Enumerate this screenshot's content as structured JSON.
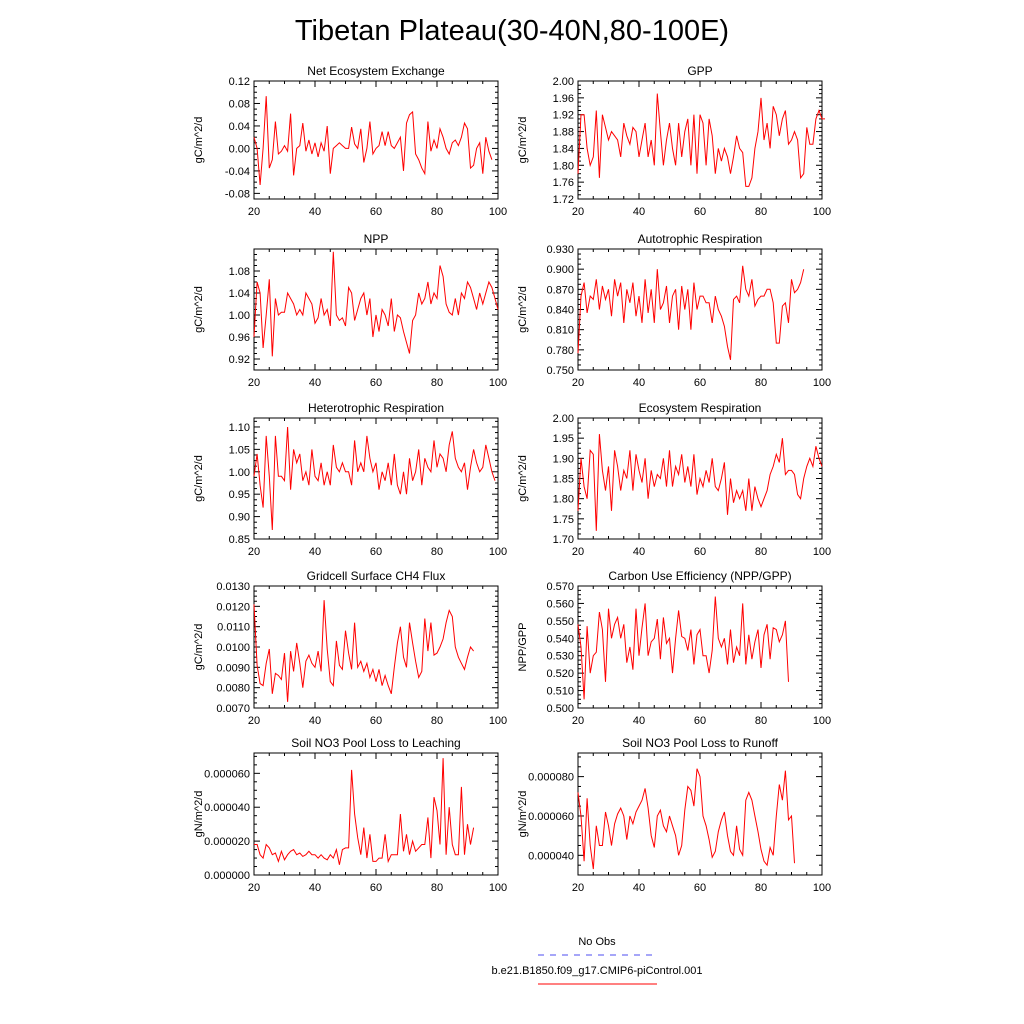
{
  "page": {
    "title": "Tibetan Plateau(30-40N,80-100E)"
  },
  "legend": {
    "items": [
      {
        "label": "No Obs",
        "color": "#4c4cf0",
        "dash": true
      },
      {
        "label": "b.e21.B1850.f09_g17.CMIP6-piControl.001",
        "color": "#ff0000",
        "dash": false
      }
    ]
  },
  "colors": {
    "series": "#ff0000",
    "axis": "#000000"
  },
  "chart_data": [
    {
      "type": "line",
      "title": "Net Ecosystem Exchange",
      "ylabel": "gC/m^2/d",
      "xlim": [
        20,
        100
      ],
      "ylim": [
        -0.09,
        0.12
      ],
      "xticks": [
        20,
        40,
        60,
        80,
        100
      ],
      "xtick_labels": [
        "20",
        "40",
        "60",
        "80",
        "100"
      ],
      "yticks": [
        -0.08,
        -0.04,
        0.0,
        0.04,
        0.08,
        0.12
      ],
      "ytick_labels": [
        "-0.08",
        "-0.04",
        "0.00",
        "0.04",
        "0.08",
        "0.12"
      ],
      "x_start": 20,
      "x_step": 1,
      "values": [
        0.02,
        0.0,
        -0.065,
        0.0,
        0.093,
        -0.035,
        -0.02,
        0.048,
        -0.01,
        -0.005,
        0.005,
        -0.005,
        0.062,
        -0.048,
        0.0,
        0.005,
        0.045,
        -0.005,
        0.015,
        -0.01,
        0.01,
        -0.015,
        0.01,
        -0.005,
        0.04,
        -0.045,
        0.0,
        0.005,
        0.01,
        0.005,
        0.0,
        0.0,
        0.038,
        0.008,
        0.0,
        0.035,
        -0.025,
        0.0,
        0.048,
        -0.01,
        0.0,
        0.005,
        0.03,
        0.005,
        0.03,
        0.005,
        0.0,
        0.01,
        0.02,
        -0.04,
        0.045,
        0.06,
        0.065,
        -0.01,
        -0.02,
        -0.035,
        -0.045,
        0.048,
        -0.005,
        0.015,
        0.0,
        0.035,
        0.02,
        0.0,
        -0.01,
        0.01,
        0.015,
        0.005,
        0.02,
        0.045,
        0.035,
        -0.035,
        -0.03,
        0.0,
        0.01,
        -0.045,
        0.02,
        -0.005,
        -0.02
      ]
    },
    {
      "type": "line",
      "title": "GPP",
      "ylabel": "gC/m^2/d",
      "xlim": [
        20,
        100
      ],
      "ylim": [
        1.72,
        2.0
      ],
      "xticks": [
        20,
        40,
        60,
        80,
        100
      ],
      "xtick_labels": [
        "20",
        "40",
        "60",
        "80",
        "100"
      ],
      "yticks": [
        1.72,
        1.76,
        1.8,
        1.84,
        1.88,
        1.92,
        1.96,
        2.0
      ],
      "ytick_labels": [
        "1.72",
        "1.76",
        "1.80",
        "1.84",
        "1.88",
        "1.92",
        "1.96",
        "2.00"
      ],
      "x_start": 20,
      "x_step": 1,
      "values": [
        1.78,
        1.92,
        1.92,
        1.84,
        1.8,
        1.82,
        1.93,
        1.77,
        1.92,
        1.89,
        1.86,
        1.88,
        1.87,
        1.86,
        1.82,
        1.9,
        1.87,
        1.85,
        1.89,
        1.88,
        1.82,
        1.86,
        1.9,
        1.82,
        1.86,
        1.8,
        1.97,
        1.88,
        1.8,
        1.86,
        1.9,
        1.84,
        1.8,
        1.9,
        1.82,
        1.88,
        1.91,
        1.8,
        1.92,
        1.78,
        1.92,
        1.9,
        1.8,
        1.91,
        1.87,
        1.78,
        1.84,
        1.81,
        1.84,
        1.82,
        1.78,
        1.82,
        1.87,
        1.84,
        1.83,
        1.75,
        1.75,
        1.77,
        1.84,
        1.88,
        1.96,
        1.86,
        1.9,
        1.84,
        1.94,
        1.92,
        1.87,
        1.91,
        1.93,
        1.85,
        1.86,
        1.88,
        1.86,
        1.77,
        1.78,
        1.89,
        1.85,
        1.85,
        1.91,
        1.93,
        1.91,
        1.91
      ]
    },
    {
      "type": "line",
      "title": "NPP",
      "ylabel": "gC/m^2/d",
      "xlim": [
        20,
        100
      ],
      "ylim": [
        0.9,
        1.12
      ],
      "xticks": [
        20,
        40,
        60,
        80,
        100
      ],
      "xtick_labels": [
        "20",
        "40",
        "60",
        "80",
        "100"
      ],
      "yticks": [
        0.92,
        0.96,
        1.0,
        1.04,
        1.08
      ],
      "ytick_labels": [
        "0.92",
        "0.96",
        "1.00",
        "1.04",
        "1.08"
      ],
      "x_start": 20,
      "x_step": 1,
      "values": [
        0.96,
        1.06,
        1.04,
        0.94,
        1.0,
        1.065,
        0.925,
        1.03,
        1.0,
        1.005,
        1.005,
        1.04,
        1.03,
        1.02,
        1.0,
        1.01,
        1.0,
        1.04,
        1.03,
        1.02,
        0.985,
        0.995,
        1.03,
        1.0,
        1.01,
        0.98,
        1.115,
        1.0,
        0.99,
        0.995,
        0.98,
        1.05,
        1.04,
        0.99,
        1.01,
        1.03,
        1.04,
        1.0,
        1.03,
        0.96,
        1.0,
        0.97,
        1.01,
        1.0,
        0.98,
        1.03,
        0.97,
        1.0,
        0.995,
        0.97,
        0.95,
        0.93,
        0.99,
        1.0,
        1.04,
        1.02,
        1.03,
        1.06,
        1.02,
        1.04,
        1.03,
        1.09,
        1.07,
        1.02,
        1.005,
        1.0,
        1.03,
        1.0,
        1.04,
        1.03,
        1.06,
        1.05,
        1.03,
        1.01,
        1.04,
        1.02,
        1.04,
        1.06,
        1.05,
        1.03,
        1.01
      ]
    },
    {
      "type": "line",
      "title": "Autotrophic Respiration",
      "ylabel": "gC/m^2/d",
      "xlim": [
        20,
        100
      ],
      "ylim": [
        0.75,
        0.93
      ],
      "xticks": [
        20,
        40,
        60,
        80,
        100
      ],
      "xtick_labels": [
        "20",
        "40",
        "60",
        "80",
        "100"
      ],
      "yticks": [
        0.75,
        0.78,
        0.81,
        0.84,
        0.87,
        0.9,
        0.93
      ],
      "ytick_labels": [
        "0.750",
        "0.780",
        "0.810",
        "0.840",
        "0.870",
        "0.900",
        "0.930"
      ],
      "x_start": 20,
      "x_step": 1,
      "values": [
        0.775,
        0.86,
        0.88,
        0.835,
        0.86,
        0.855,
        0.885,
        0.84,
        0.875,
        0.855,
        0.87,
        0.83,
        0.885,
        0.86,
        0.88,
        0.82,
        0.87,
        0.85,
        0.88,
        0.83,
        0.86,
        0.82,
        0.885,
        0.835,
        0.87,
        0.82,
        0.9,
        0.84,
        0.85,
        0.875,
        0.82,
        0.86,
        0.87,
        0.81,
        0.875,
        0.84,
        0.87,
        0.81,
        0.88,
        0.84,
        0.86,
        0.86,
        0.85,
        0.85,
        0.82,
        0.86,
        0.84,
        0.83,
        0.815,
        0.785,
        0.765,
        0.855,
        0.86,
        0.85,
        0.905,
        0.87,
        0.86,
        0.885,
        0.845,
        0.855,
        0.86,
        0.86,
        0.87,
        0.87,
        0.85,
        0.79,
        0.79,
        0.845,
        0.85,
        0.82,
        0.885,
        0.865,
        0.87,
        0.88,
        0.9
      ]
    },
    {
      "type": "line",
      "title": "Heterotrophic Respiration",
      "ylabel": "gC/m^2/d",
      "xlim": [
        20,
        100
      ],
      "ylim": [
        0.85,
        1.12
      ],
      "xticks": [
        20,
        40,
        60,
        80,
        100
      ],
      "xtick_labels": [
        "20",
        "40",
        "60",
        "80",
        "100"
      ],
      "yticks": [
        0.85,
        0.9,
        0.95,
        1.0,
        1.05,
        1.1
      ],
      "ytick_labels": [
        "0.85",
        "0.90",
        "0.95",
        "1.00",
        "1.05",
        "1.10"
      ],
      "x_start": 20,
      "x_step": 1,
      "values": [
        0.99,
        1.04,
        0.97,
        0.92,
        1.08,
        0.99,
        0.87,
        1.08,
        0.99,
        0.99,
        0.98,
        1.1,
        0.96,
        1.05,
        1.02,
        1.04,
        0.98,
        1.0,
        0.97,
        1.05,
        0.99,
        0.98,
        1.02,
        0.97,
        1.0,
        0.97,
        1.06,
        1.01,
        1.0,
        1.02,
        1.0,
        1.0,
        0.97,
        1.07,
        1.0,
        1.02,
        1.0,
        1.08,
        1.03,
        1.0,
        1.02,
        0.96,
        1.0,
        0.98,
        1.02,
        0.97,
        1.04,
        0.97,
        0.95,
        1.0,
        0.95,
        1.03,
        0.98,
        1.0,
        1.05,
        0.97,
        1.03,
        1.01,
        1.0,
        1.07,
        1.01,
        1.04,
        1.03,
        1.0,
        1.06,
        1.09,
        1.03,
        1.01,
        1.0,
        1.02,
        0.96,
        1.01,
        1.05,
        1.02,
        1.0,
        1.01,
        1.06,
        1.03,
        1.0,
        0.98
      ]
    },
    {
      "type": "line",
      "title": "Ecosystem Respiration",
      "ylabel": "gC/m^2/d",
      "xlim": [
        20,
        100
      ],
      "ylim": [
        1.7,
        2.0
      ],
      "xticks": [
        20,
        40,
        60,
        80,
        100
      ],
      "xtick_labels": [
        "20",
        "40",
        "60",
        "80",
        "100"
      ],
      "yticks": [
        1.7,
        1.75,
        1.8,
        1.85,
        1.9,
        1.95,
        2.0
      ],
      "ytick_labels": [
        "1.70",
        "1.75",
        "1.80",
        "1.85",
        "1.90",
        "1.95",
        "2.00"
      ],
      "x_start": 20,
      "x_step": 1,
      "values": [
        1.77,
        1.9,
        1.83,
        1.8,
        1.92,
        1.91,
        1.72,
        1.96,
        1.87,
        1.82,
        1.88,
        1.77,
        1.92,
        1.88,
        1.82,
        1.87,
        1.85,
        1.92,
        1.82,
        1.91,
        1.87,
        1.84,
        1.9,
        1.8,
        1.87,
        1.83,
        1.86,
        1.85,
        1.9,
        1.83,
        1.92,
        1.83,
        1.88,
        1.86,
        1.91,
        1.84,
        1.88,
        1.83,
        1.91,
        1.81,
        1.85,
        1.83,
        1.87,
        1.84,
        1.9,
        1.83,
        1.82,
        1.85,
        1.89,
        1.76,
        1.85,
        1.79,
        1.82,
        1.8,
        1.82,
        1.77,
        1.85,
        1.77,
        1.83,
        1.8,
        1.78,
        1.8,
        1.82,
        1.86,
        1.88,
        1.91,
        1.89,
        1.95,
        1.86,
        1.87,
        1.87,
        1.86,
        1.81,
        1.8,
        1.85,
        1.88,
        1.9,
        1.88,
        1.93,
        1.9,
        1.88
      ]
    },
    {
      "type": "line",
      "title": "Gridcell Surface CH4 Flux",
      "ylabel": "gC/m^2/d",
      "xlim": [
        20,
        100
      ],
      "ylim": [
        0.007,
        0.013
      ],
      "xticks": [
        20,
        40,
        60,
        80,
        100
      ],
      "xtick_labels": [
        "20",
        "40",
        "60",
        "80",
        "100"
      ],
      "yticks": [
        0.007,
        0.008,
        0.009,
        0.01,
        0.011,
        0.012,
        0.013
      ],
      "ytick_labels": [
        "0.0070",
        "0.0080",
        "0.0090",
        "0.0100",
        "0.0110",
        "0.0120",
        "0.0130"
      ],
      "x_start": 20,
      "x_step": 1,
      "values": [
        0.0121,
        0.0091,
        0.0082,
        0.0081,
        0.0092,
        0.0099,
        0.0077,
        0.0087,
        0.0086,
        0.0084,
        0.0097,
        0.0073,
        0.0098,
        0.0088,
        0.0102,
        0.0092,
        0.008,
        0.0093,
        0.0096,
        0.0092,
        0.009,
        0.0098,
        0.0088,
        0.0123,
        0.0099,
        0.0083,
        0.0081,
        0.0103,
        0.0091,
        0.0089,
        0.0108,
        0.0097,
        0.0089,
        0.0112,
        0.009,
        0.0093,
        0.0088,
        0.0092,
        0.0085,
        0.0089,
        0.0083,
        0.0089,
        0.0081,
        0.0086,
        0.0081,
        0.0077,
        0.009,
        0.0102,
        0.011,
        0.0095,
        0.009,
        0.0112,
        0.0102,
        0.0093,
        0.0085,
        0.0088,
        0.0114,
        0.0098,
        0.0112,
        0.0096,
        0.0097,
        0.01,
        0.0104,
        0.0112,
        0.0118,
        0.0115,
        0.01,
        0.0095,
        0.0092,
        0.0089,
        0.0095,
        0.01,
        0.0098
      ]
    },
    {
      "type": "line",
      "title": "Carbon Use Efficiency (NPP/GPP)",
      "ylabel": "NPP/GPP",
      "xlim": [
        20,
        100
      ],
      "ylim": [
        0.5,
        0.57
      ],
      "xticks": [
        20,
        40,
        60,
        80,
        100
      ],
      "xtick_labels": [
        "20",
        "40",
        "60",
        "80",
        "100"
      ],
      "yticks": [
        0.5,
        0.51,
        0.52,
        0.53,
        0.54,
        0.55,
        0.56,
        0.57
      ],
      "ytick_labels": [
        "0.500",
        "0.510",
        "0.520",
        "0.530",
        "0.540",
        "0.550",
        "0.560",
        "0.570"
      ],
      "x_start": 20,
      "x_step": 1,
      "values": [
        0.548,
        0.535,
        0.505,
        0.547,
        0.52,
        0.53,
        0.532,
        0.555,
        0.545,
        0.515,
        0.557,
        0.54,
        0.548,
        0.552,
        0.54,
        0.548,
        0.526,
        0.535,
        0.522,
        0.557,
        0.53,
        0.546,
        0.56,
        0.53,
        0.538,
        0.54,
        0.551,
        0.528,
        0.552,
        0.537,
        0.54,
        0.52,
        0.54,
        0.556,
        0.541,
        0.54,
        0.533,
        0.545,
        0.525,
        0.542,
        0.545,
        0.53,
        0.53,
        0.52,
        0.533,
        0.564,
        0.54,
        0.535,
        0.54,
        0.525,
        0.545,
        0.526,
        0.535,
        0.53,
        0.56,
        0.525,
        0.542,
        0.528,
        0.538,
        0.545,
        0.523,
        0.542,
        0.548,
        0.528,
        0.546,
        0.545,
        0.538,
        0.542,
        0.55,
        0.515
      ]
    },
    {
      "type": "line",
      "title": "Soil NO3 Pool Loss to Leaching",
      "ylabel": "gN/m^2/d",
      "xlim": [
        20,
        100
      ],
      "ylim": [
        0.0,
        7.2e-05
      ],
      "xticks": [
        20,
        40,
        60,
        80,
        100
      ],
      "xtick_labels": [
        "20",
        "40",
        "60",
        "80",
        "100"
      ],
      "yticks": [
        0.0,
        2e-05,
        4e-05,
        6e-05
      ],
      "ytick_labels": [
        "0.000000",
        "0.000020",
        "0.000040",
        "0.000060"
      ],
      "x_start": 20,
      "x_step": 1,
      "values": [
        1.8e-05,
        1.8e-05,
        1.2e-05,
        1e-05,
        1.8e-05,
        1.6e-05,
        1.2e-05,
        1.3e-05,
        8e-06,
        1.4e-05,
        9e-06,
        1.2e-05,
        1.4e-05,
        1.5e-05,
        1.2e-05,
        1.3e-05,
        1.1e-05,
        1.2e-05,
        1.4e-05,
        1.2e-05,
        1.2e-05,
        1e-05,
        1.2e-05,
        1e-05,
        9e-06,
        1.2e-05,
        1e-05,
        1.5e-05,
        6e-06,
        1.5e-05,
        1.6e-05,
        1.6e-05,
        6.2e-05,
        3.6e-05,
        2.2e-05,
        1.2e-05,
        2.8e-05,
        1e-05,
        2.4e-05,
        8e-06,
        8e-06,
        1e-05,
        1e-05,
        2.4e-05,
        8e-06,
        1.2e-05,
        1.2e-05,
        1.2e-05,
        3.6e-05,
        1.4e-05,
        2.4e-05,
        1.2e-05,
        2e-05,
        1.4e-05,
        1.6e-05,
        1.8e-05,
        1.8e-05,
        3.4e-05,
        1e-05,
        4.6e-05,
        3.8e-05,
        1.8e-05,
        6.9e-05,
        1.2e-05,
        4e-05,
        1.8e-05,
        1.2e-05,
        1.2e-05,
        5.2e-05,
        1.2e-05,
        3e-05,
        1.8e-05,
        2.8e-05
      ]
    },
    {
      "type": "line",
      "title": "Soil NO3 Pool Loss to Runoff",
      "ylabel": "gN/m^2/d",
      "xlim": [
        20,
        100
      ],
      "ylim": [
        3e-05,
        9.2e-05
      ],
      "xticks": [
        20,
        40,
        60,
        80,
        100
      ],
      "xtick_labels": [
        "20",
        "40",
        "60",
        "80",
        "100"
      ],
      "yticks": [
        4e-05,
        6e-05,
        8e-05
      ],
      "ytick_labels": [
        "0.000040",
        "0.000060",
        "0.000080"
      ],
      "x_start": 20,
      "x_step": 1,
      "values": [
        7.2e-05,
        6e-05,
        3.7e-05,
        6.9e-05,
        4.5e-05,
        3.3e-05,
        5.5e-05,
        4.5e-05,
        4.5e-05,
        6.2e-05,
        5.5e-05,
        4.5e-05,
        5.6e-05,
        6.1e-05,
        6.4e-05,
        6e-05,
        4.8e-05,
        6e-05,
        5.6e-05,
        6.2e-05,
        6.5e-05,
        6.8e-05,
        7.4e-05,
        6.4e-05,
        5e-05,
        4.4e-05,
        6e-05,
        6.3e-05,
        5.5e-05,
        5.2e-05,
        6e-05,
        5.5e-05,
        5e-05,
        4e-05,
        4.5e-05,
        6.3e-05,
        7.5e-05,
        7.3e-05,
        6.5e-05,
        8.4e-05,
        8e-05,
        6e-05,
        5.5e-05,
        4.8e-05,
        3.9e-05,
        4.2e-05,
        5.2e-05,
        5.8e-05,
        6.2e-05,
        5e-05,
        4.2e-05,
        4e-05,
        5.5e-05,
        4.3e-05,
        4e-05,
        6.8e-05,
        7.2e-05,
        6.8e-05,
        6e-05,
        5.2e-05,
        4.3e-05,
        3.7e-05,
        3.5e-05,
        4.4e-05,
        4e-05,
        6e-05,
        7.6e-05,
        6.8e-05,
        8.3e-05,
        5.8e-05,
        6e-05,
        3.6e-05
      ]
    }
  ]
}
